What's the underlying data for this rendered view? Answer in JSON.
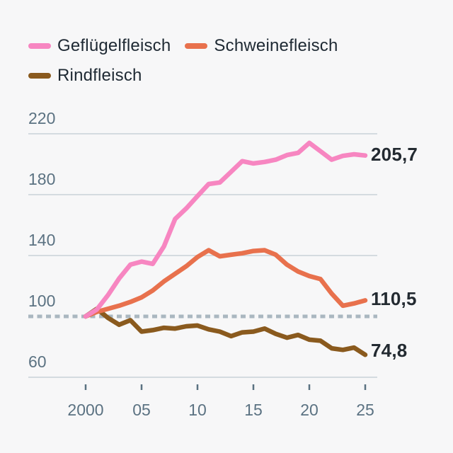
{
  "legend": {
    "items": [
      {
        "label": "Geflügelfleisch",
        "color": "#f786c1"
      },
      {
        "label": "Schweinefleisch",
        "color": "#e8714d"
      },
      {
        "label": "Rindfleisch",
        "color": "#8a5a1e"
      }
    ]
  },
  "colors": {
    "background": "#f7f7f8",
    "grid": "#c9d2d8",
    "baseline_dotted": "#aab7c0",
    "axis_label": "#5b7282",
    "legend_text": "#1e2933",
    "end_label_text": "#232a31"
  },
  "chart_data": {
    "type": "line",
    "title": "",
    "xlabel": "",
    "ylabel": "",
    "grid": "horizontal",
    "legend_position": "top",
    "xlim": [
      2000,
      2025
    ],
    "ylim": [
      60,
      220
    ],
    "baseline_value": 100,
    "y_ticks": [
      220,
      180,
      140,
      100,
      60
    ],
    "x_tick_years": [
      2000,
      2005,
      2010,
      2015,
      2020,
      2025
    ],
    "x_tick_labels": [
      "2000",
      "05",
      "10",
      "15",
      "20",
      "25"
    ],
    "x": [
      2000,
      2001,
      2002,
      2003,
      2004,
      2005,
      2006,
      2007,
      2008,
      2009,
      2010,
      2011,
      2012,
      2013,
      2014,
      2015,
      2016,
      2017,
      2018,
      2019,
      2020,
      2021,
      2022,
      2023,
      2024,
      2025
    ],
    "series": [
      {
        "id": "gefluegelfleisch",
        "name": "Geflügelfleisch",
        "color": "#f786c1",
        "end_label": "205,7",
        "end_value": 205.7,
        "values": [
          100,
          104.5,
          114,
          125,
          134,
          136,
          134.5,
          146,
          164,
          171,
          179,
          187,
          188,
          195,
          202,
          200.5,
          201.5,
          203,
          206,
          207.5,
          214,
          208.5,
          203,
          205.5,
          206.5,
          205.7
        ]
      },
      {
        "id": "schweinefleisch",
        "name": "Schweinefleisch",
        "color": "#e8714d",
        "end_label": "110,5",
        "end_value": 110.5,
        "values": [
          100,
          103,
          105,
          107,
          109.5,
          112.5,
          117,
          123,
          128,
          133,
          139,
          143.5,
          139.5,
          140.5,
          141.5,
          143,
          143.5,
          140.5,
          134,
          129.5,
          126.5,
          124.5,
          115,
          107,
          108.5,
          110.5
        ]
      },
      {
        "id": "rindfleisch",
        "name": "Rindfleisch",
        "color": "#8a5a1e",
        "end_label": "74,8",
        "end_value": 74.8,
        "values": [
          100,
          105,
          99,
          94.5,
          97.5,
          90,
          91,
          92.5,
          92,
          93.5,
          94,
          91.5,
          90,
          87,
          89.5,
          90,
          92,
          88.5,
          86,
          87.8,
          84.7,
          84,
          79,
          78,
          79.5,
          74.8
        ]
      }
    ]
  }
}
